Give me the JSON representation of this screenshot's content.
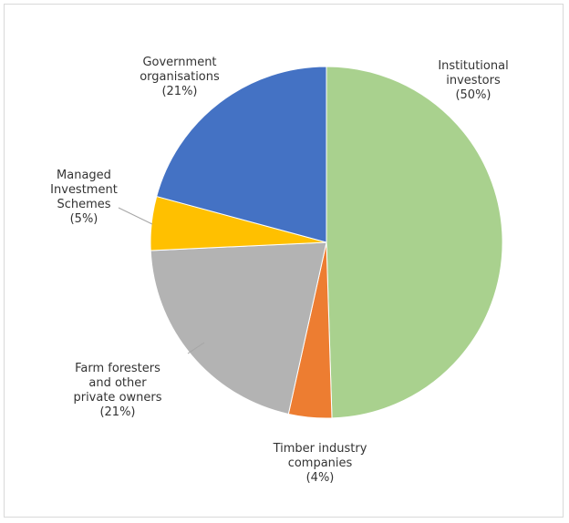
{
  "chart_data": {
    "type": "pie",
    "title": "",
    "slices": [
      {
        "name": "Institutional investors",
        "value": 50,
        "label_lines": [
          "Institutional",
          "investors",
          "(50%)"
        ],
        "color": "#a9d18e"
      },
      {
        "name": "Timber industry companies",
        "value": 4,
        "label_lines": [
          "Timber industry",
          "companies",
          "(4%)"
        ],
        "color": "#ed7d31"
      },
      {
        "name": "Farm foresters and other private owners",
        "value": 21,
        "label_lines": [
          "Farm foresters",
          "and other",
          "private owners",
          "(21%)"
        ],
        "color": "#b3b3b3"
      },
      {
        "name": "Managed Investment Schemes",
        "value": 5,
        "label_lines": [
          "Managed",
          "Investment",
          "Schemes",
          "(5%)"
        ],
        "color": "#ffc000"
      },
      {
        "name": "Government organisations",
        "value": 21,
        "label_lines": [
          "Government",
          "organisations",
          "(21%)"
        ],
        "color": "#4472c4"
      }
    ],
    "start_angle_deg": 0,
    "direction": "clockwise"
  }
}
